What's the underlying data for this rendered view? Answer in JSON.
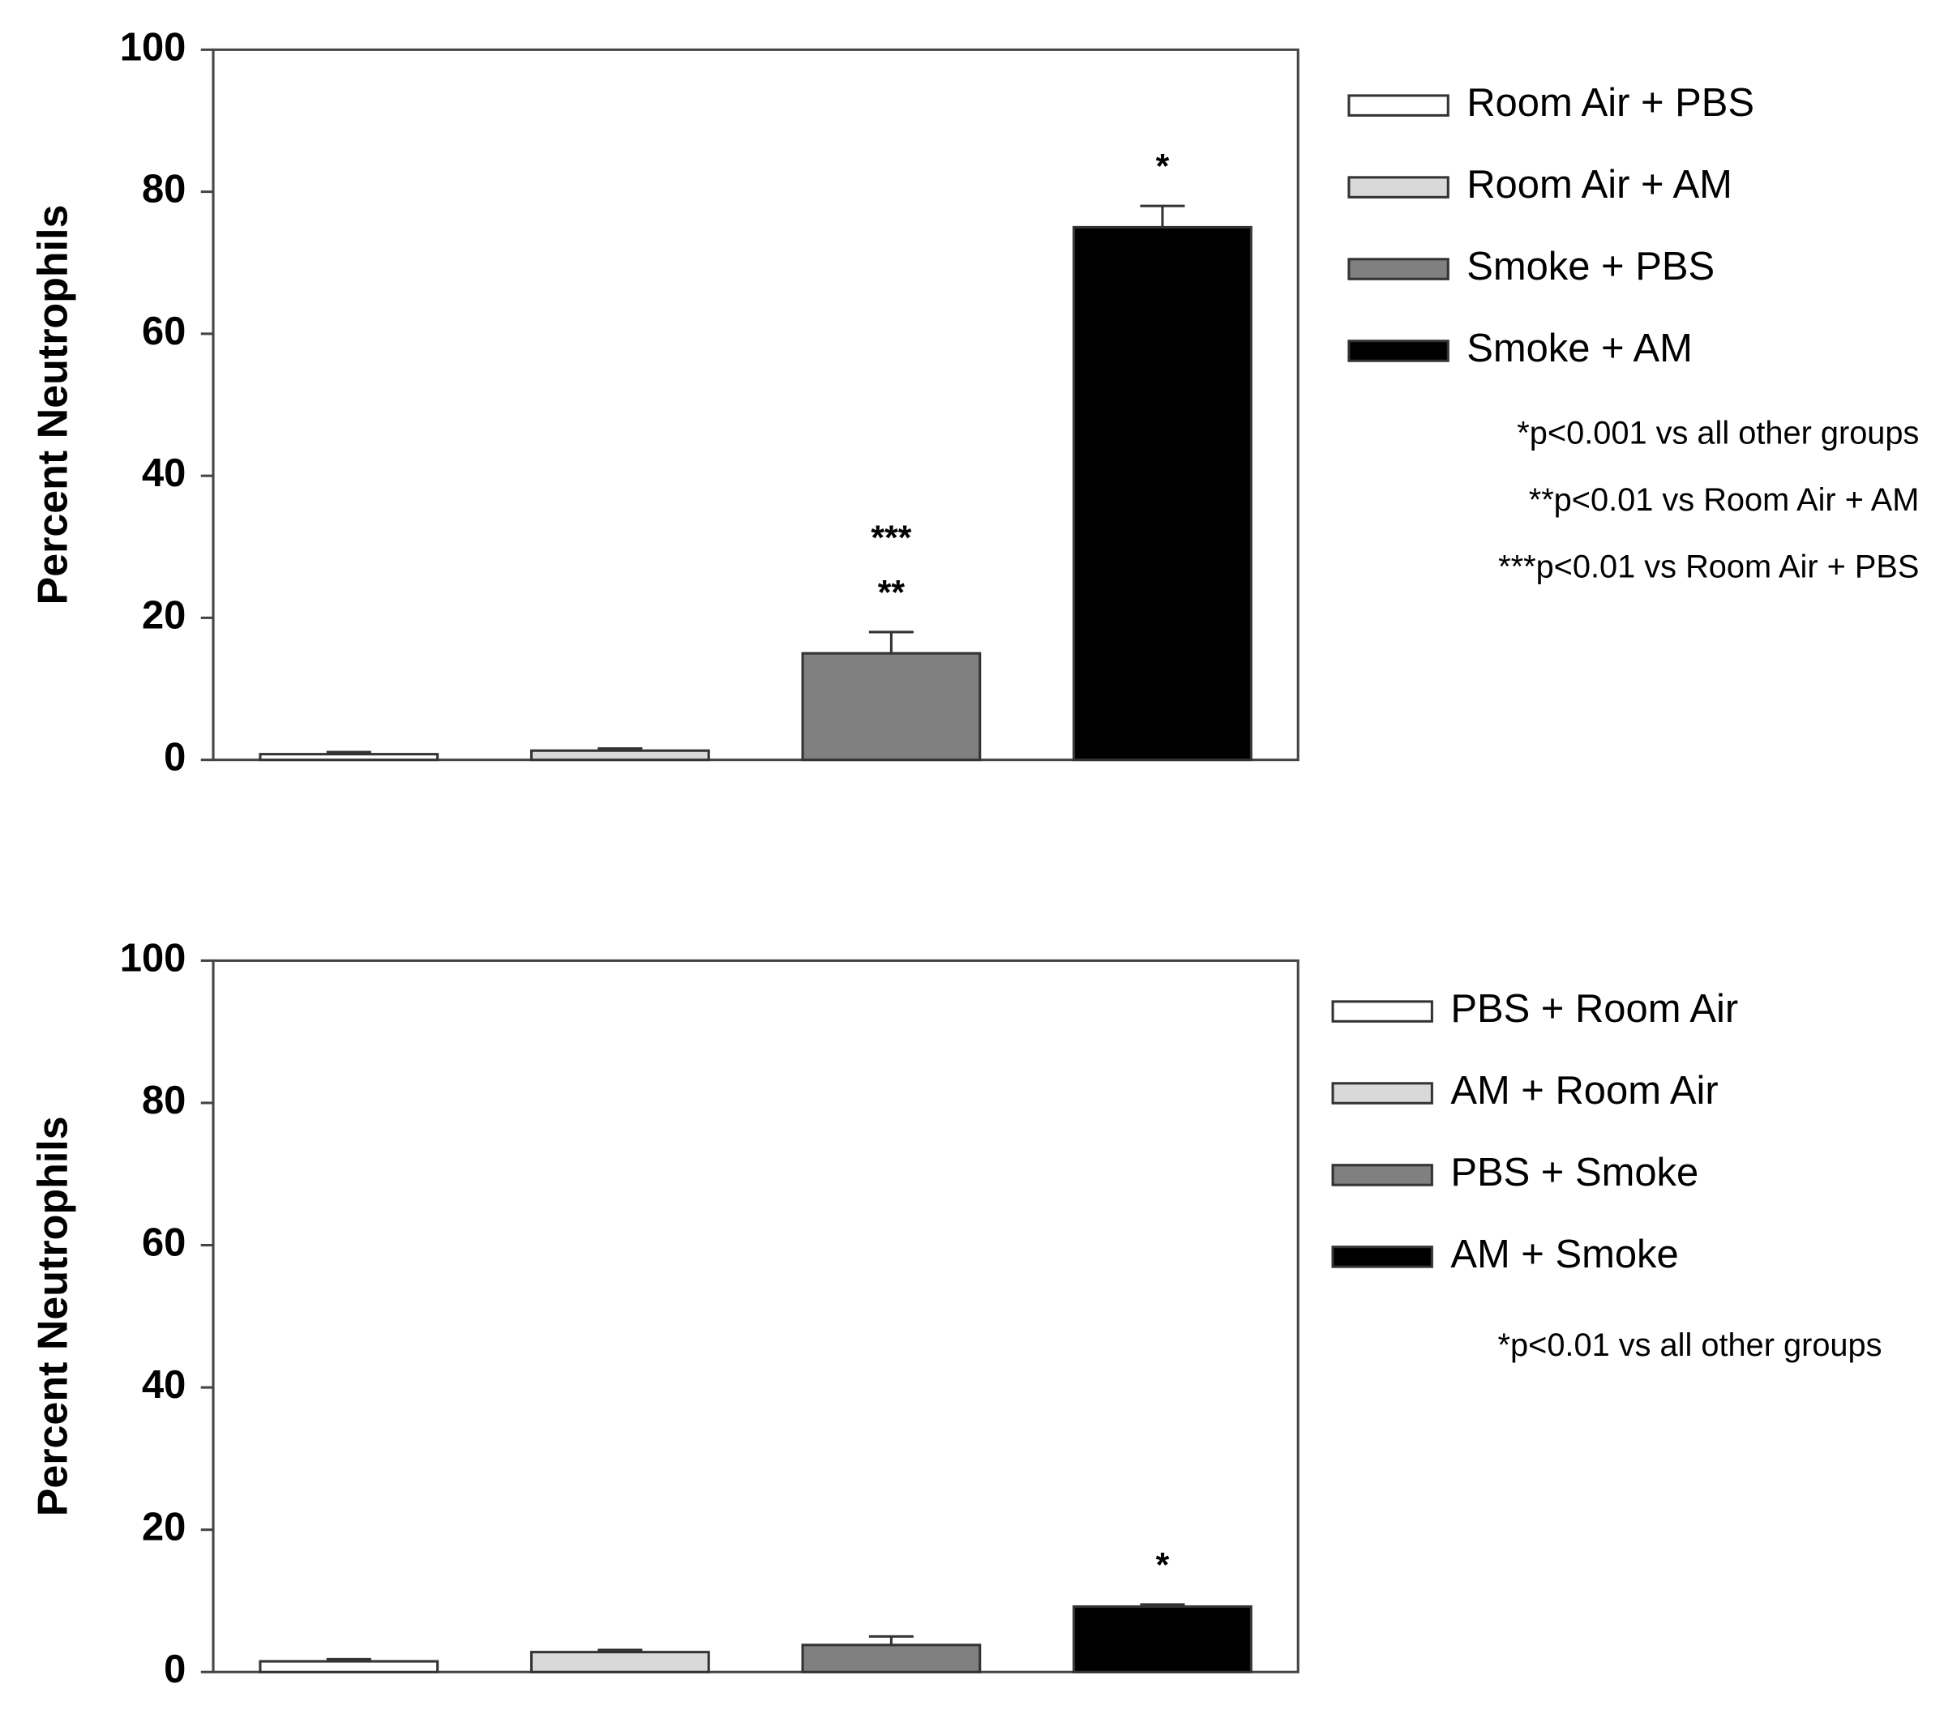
{
  "chart_data": [
    {
      "type": "bar",
      "y_label": "Percent Neutrophils",
      "categories": [
        "Room Air + PBS",
        "Room Air + AM",
        "Smoke + PBS",
        "Smoke + AM"
      ],
      "values": [
        0.8,
        1.3,
        15,
        75
      ],
      "errors": [
        0.3,
        0.3,
        3,
        3
      ],
      "colors": [
        "#ffffff",
        "#d9d9d9",
        "#808080",
        "#000000"
      ],
      "significance": [
        null,
        null,
        [
          "***",
          "**"
        ],
        [
          "*"
        ]
      ],
      "notes": [
        "*p<0.001 vs all other groups",
        "**p<0.01 vs Room Air + AM",
        "***p<0.01 vs Room Air + PBS"
      ],
      "ylim": [
        0,
        100
      ],
      "yticks": [
        0,
        20,
        40,
        60,
        80,
        100
      ]
    },
    {
      "type": "bar",
      "y_label": "Percent Neutrophils",
      "categories": [
        "PBS + Room Air",
        "AM + Room Air",
        "PBS + Smoke",
        "AM + Smoke"
      ],
      "values": [
        1.5,
        2.8,
        3.8,
        9.2
      ],
      "errors": [
        0.3,
        0.3,
        1.2,
        0.3
      ],
      "colors": [
        "#ffffff",
        "#d9d9d9",
        "#808080",
        "#000000"
      ],
      "significance": [
        null,
        null,
        null,
        [
          "*"
        ]
      ],
      "notes": [
        "*p<0.01 vs all other groups"
      ],
      "ylim": [
        0,
        100
      ],
      "yticks": [
        0,
        20,
        40,
        60,
        80,
        100
      ]
    }
  ]
}
